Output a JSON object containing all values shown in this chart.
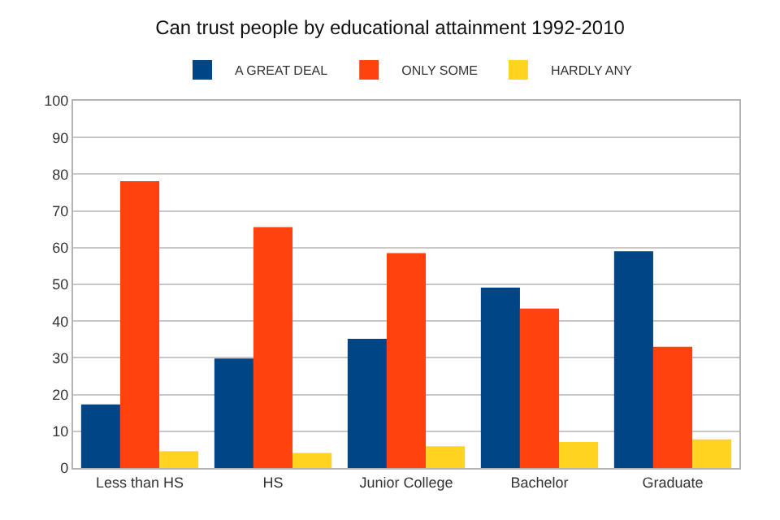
{
  "chart_data": {
    "type": "bar",
    "title": "Can trust people by educational attainment 1992-2010",
    "categories": [
      "Less than HS",
      "HS",
      "Junior College",
      "Bachelor",
      "Graduate"
    ],
    "series": [
      {
        "name": "A GREAT DEAL",
        "color": "#004586",
        "values": [
          17.3,
          29.8,
          35.2,
          49.1,
          59.0
        ]
      },
      {
        "name": "ONLY SOME",
        "color": "#ff420e",
        "values": [
          78.1,
          65.6,
          58.5,
          43.4,
          33.0
        ]
      },
      {
        "name": "HARDLY ANY",
        "color": "#ffd320",
        "values": [
          4.6,
          4.1,
          5.9,
          7.1,
          7.8
        ]
      }
    ],
    "ylim": [
      0,
      100
    ],
    "yticks": [
      0,
      10,
      20,
      30,
      40,
      50,
      60,
      70,
      80,
      90,
      100
    ],
    "grid": "y",
    "legend": "top"
  }
}
